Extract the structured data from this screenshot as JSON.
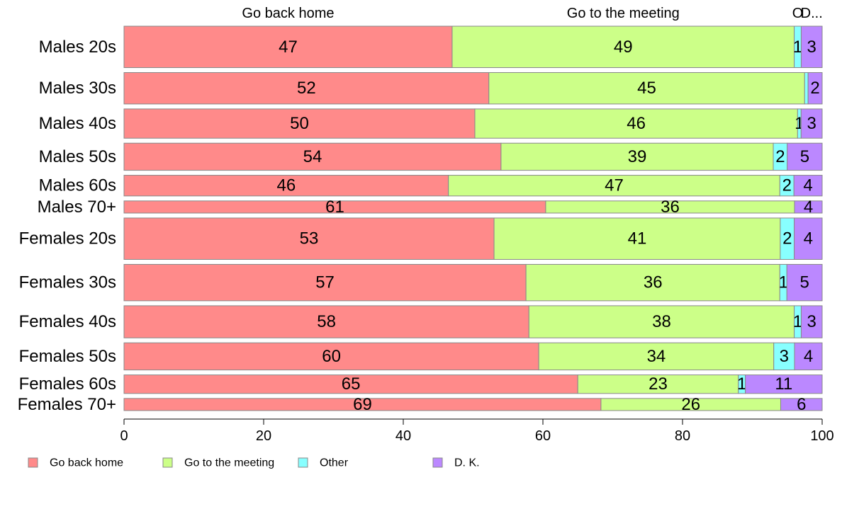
{
  "chart_data": {
    "type": "bar",
    "orientation": "horizontal",
    "stacked": true,
    "percent": true,
    "categories": [
      "Males 20s",
      "Males 30s",
      "Males 40s",
      "Males 50s",
      "Males 60s",
      "Males 70+",
      "Females 20s",
      "Females 30s",
      "Females 40s",
      "Females 50s",
      "Females 60s",
      "Females 70+"
    ],
    "row_weights": [
      58,
      44,
      41,
      38,
      29,
      17,
      58,
      51,
      45,
      38,
      26,
      17
    ],
    "series": [
      {
        "name": "Go back home",
        "color": "#ff8a8a",
        "values": [
          47,
          52,
          50,
          54,
          46,
          61,
          53,
          57,
          58,
          60,
          65,
          69
        ]
      },
      {
        "name": "Go to the meeting",
        "color": "#ccff88",
        "values": [
          49,
          45,
          46,
          39,
          47,
          36,
          41,
          36,
          38,
          34,
          23,
          26
        ]
      },
      {
        "name": "Other",
        "color": "#88ffff",
        "values": [
          1,
          0.5,
          0.5,
          2,
          2,
          0,
          2,
          1,
          1,
          3,
          1,
          0
        ]
      },
      {
        "name": "D. K.",
        "color": "#bb88ff",
        "values": [
          3,
          2,
          3,
          5,
          4,
          4,
          4,
          5,
          3,
          4,
          11,
          6
        ]
      }
    ],
    "segment_labels": [
      [
        "47",
        "49",
        "1",
        "3"
      ],
      [
        "52",
        "45",
        "",
        "2"
      ],
      [
        "50",
        "46",
        "1",
        "3"
      ],
      [
        "54",
        "39",
        "2",
        "5"
      ],
      [
        "46",
        "47",
        "2",
        "4"
      ],
      [
        "61",
        "36",
        "",
        "4"
      ],
      [
        "53",
        "41",
        "2",
        "4"
      ],
      [
        "57",
        "36",
        "1",
        "5"
      ],
      [
        "58",
        "38",
        "1",
        "3"
      ],
      [
        "60",
        "34",
        "3",
        "4"
      ],
      [
        "65",
        "23",
        "1",
        "11"
      ],
      [
        "69",
        "26",
        "",
        "6"
      ]
    ],
    "column_headers": [
      "Go back home",
      "Go to the meeting",
      "O",
      "D..."
    ],
    "xlim": [
      0,
      100
    ],
    "xticks": [
      0,
      20,
      40,
      60,
      80,
      100
    ],
    "legend_position": "bottom",
    "grid": false
  }
}
